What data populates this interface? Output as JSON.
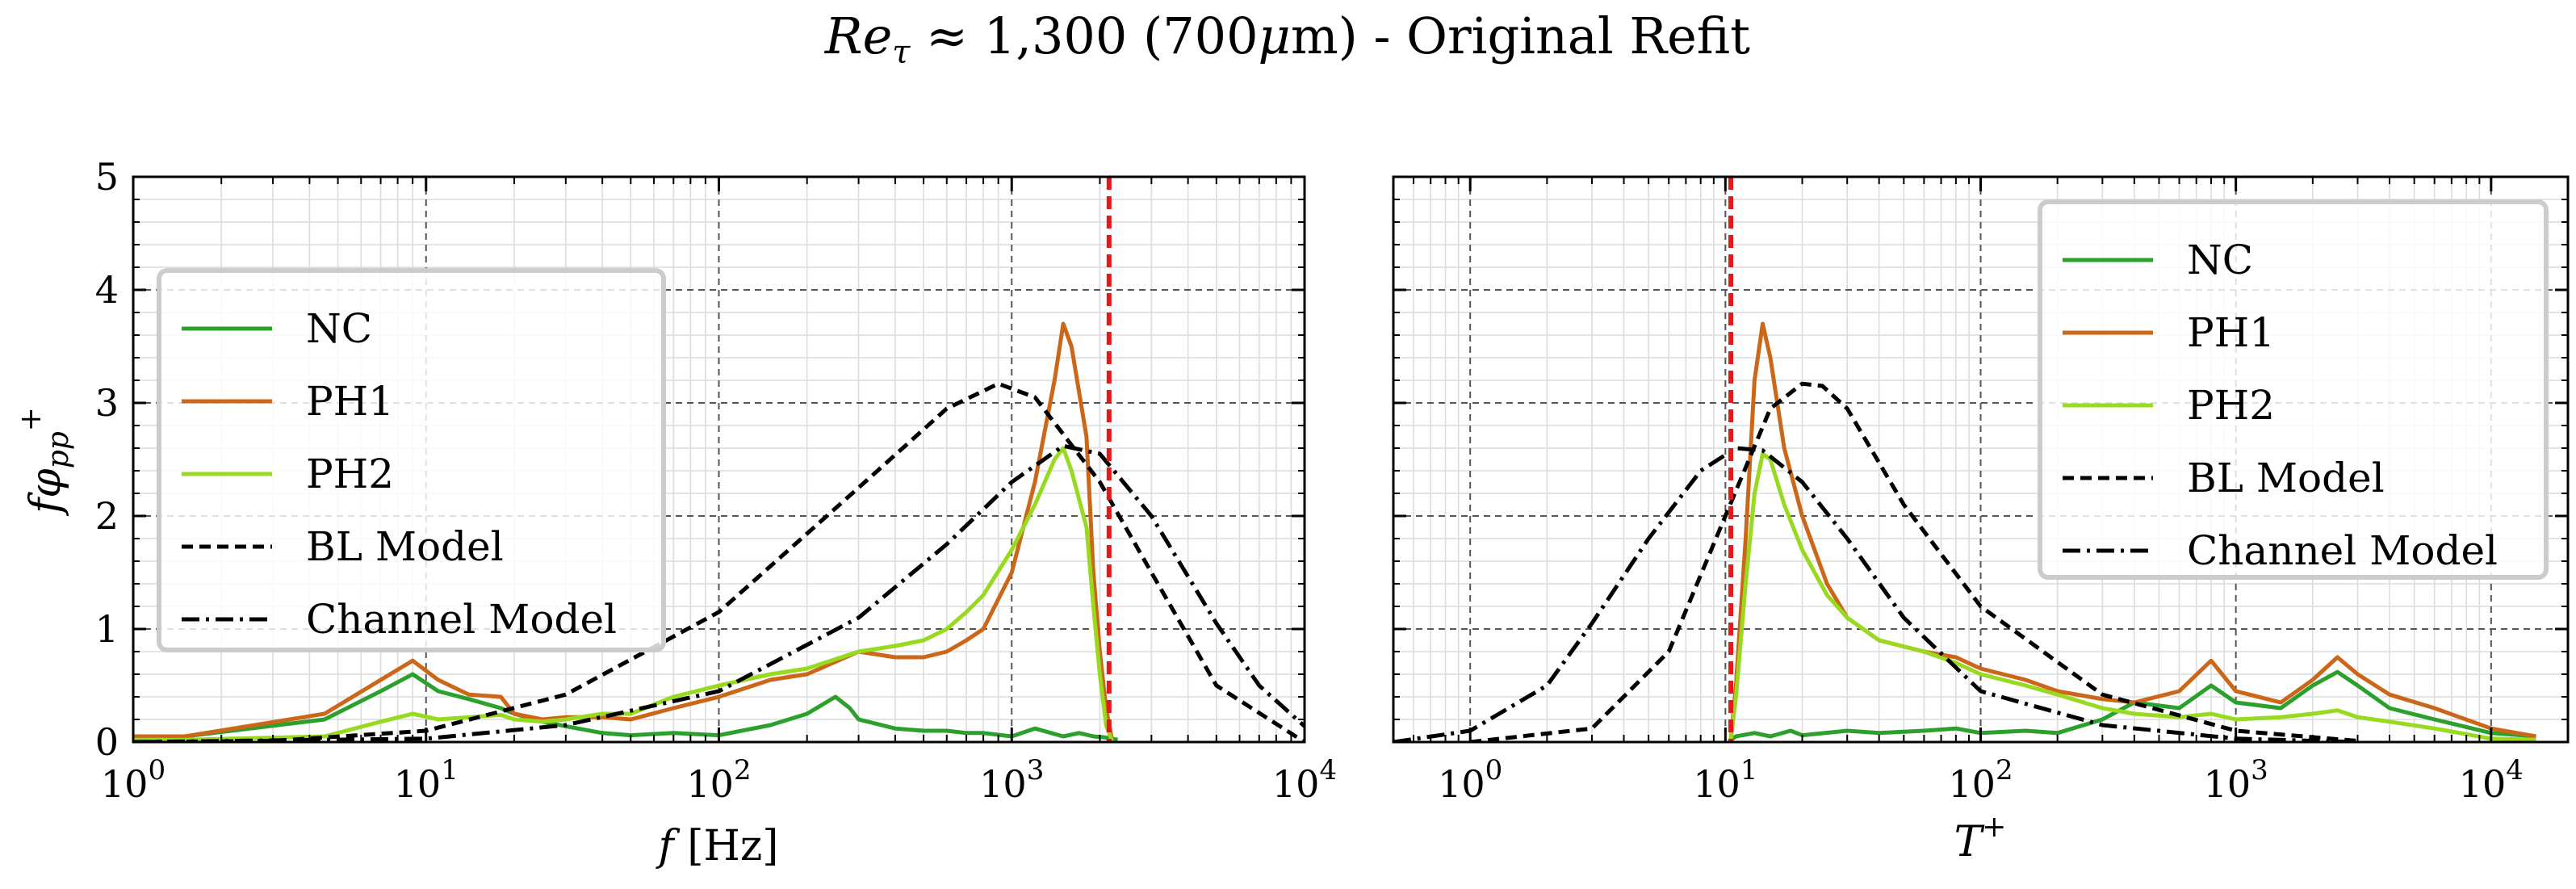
{
  "title": "Reτ ≈ 1,300 (700μm) - Original Refit",
  "title_parts": {
    "re": "Re",
    "tau": "τ",
    "approx": " ≈ 1,300 (700",
    "mu": "μ",
    "rest": "m) - Original Refit"
  },
  "colors": {
    "NC": "#2ca02c",
    "PH1": "#cc6619",
    "PH2": "#99d91f",
    "models": "#000000",
    "cutoff": "#e31a1c"
  },
  "chart_data": [
    {
      "type": "line",
      "xscale": "log",
      "xlabel": "f [Hz]",
      "ylabel": "fφpp+",
      "xlim": [
        1,
        10000
      ],
      "ylim": [
        0,
        5
      ],
      "xticks": [
        "10^0",
        "10^1",
        "10^2",
        "10^3",
        "10^4"
      ],
      "yticks": [
        "0",
        "1",
        "2",
        "3",
        "4",
        "5"
      ],
      "grid": true,
      "legend": {
        "placement": "left",
        "entries": [
          "NC",
          "PH1",
          "PH2",
          "BL Model",
          "Channel Model"
        ]
      },
      "cutoff_line_x": 2150,
      "series": [
        {
          "name": "NC",
          "style": "solid",
          "x": [
            1,
            1.5,
            4.5,
            7,
            9,
            11,
            14,
            18,
            20,
            25,
            30,
            40,
            50,
            70,
            100,
            150,
            200,
            250,
            280,
            300,
            400,
            500,
            600,
            700,
            800,
            1000,
            1200,
            1500,
            1700,
            1900,
            2100,
            2300
          ],
          "y": [
            0.05,
            0.05,
            0.2,
            0.45,
            0.6,
            0.45,
            0.38,
            0.3,
            0.25,
            0.18,
            0.14,
            0.08,
            0.06,
            0.08,
            0.06,
            0.15,
            0.25,
            0.4,
            0.3,
            0.2,
            0.12,
            0.1,
            0.1,
            0.08,
            0.08,
            0.05,
            0.12,
            0.05,
            0.08,
            0.05,
            0.04,
            0.02
          ]
        },
        {
          "name": "PH1",
          "style": "solid",
          "x": [
            1,
            1.5,
            4.5,
            7,
            9,
            11,
            14,
            18,
            20,
            25,
            30,
            40,
            50,
            70,
            100,
            150,
            200,
            300,
            400,
            500,
            600,
            700,
            800,
            1000,
            1200,
            1400,
            1500,
            1600,
            1800,
            1900,
            2000,
            2100,
            2200
          ],
          "y": [
            0.05,
            0.05,
            0.25,
            0.55,
            0.72,
            0.55,
            0.42,
            0.4,
            0.25,
            0.2,
            0.22,
            0.22,
            0.2,
            0.3,
            0.4,
            0.55,
            0.6,
            0.8,
            0.75,
            0.75,
            0.8,
            0.9,
            1.0,
            1.5,
            2.3,
            3.2,
            3.7,
            3.5,
            2.7,
            1.5,
            0.8,
            0.3,
            0.02
          ]
        },
        {
          "name": "PH2",
          "style": "solid",
          "x": [
            1,
            1.5,
            4.5,
            7,
            9,
            11,
            14,
            18,
            20,
            25,
            30,
            40,
            50,
            70,
            100,
            150,
            200,
            300,
            400,
            500,
            600,
            700,
            800,
            1000,
            1200,
            1400,
            1500,
            1600,
            1800,
            1900,
            2000,
            2100,
            2200
          ],
          "y": [
            0.02,
            0.02,
            0.05,
            0.18,
            0.25,
            0.2,
            0.22,
            0.24,
            0.2,
            0.18,
            0.2,
            0.25,
            0.25,
            0.4,
            0.5,
            0.6,
            0.65,
            0.8,
            0.85,
            0.9,
            1.0,
            1.15,
            1.3,
            1.7,
            2.1,
            2.5,
            2.6,
            2.4,
            1.9,
            1.2,
            0.6,
            0.15,
            0.01
          ]
        },
        {
          "name": "BL Model",
          "style": "dashed",
          "x": [
            1,
            3,
            10,
            30,
            100,
            300,
            600,
            900,
            1200,
            2000,
            3000,
            5000,
            10000
          ],
          "y": [
            0.0,
            0.01,
            0.1,
            0.42,
            1.15,
            2.25,
            2.95,
            3.17,
            3.05,
            2.3,
            1.5,
            0.5,
            0.0
          ]
        },
        {
          "name": "Channel Model",
          "style": "dashdot",
          "x": [
            1,
            10,
            30,
            100,
            300,
            600,
            1000,
            1500,
            2000,
            3000,
            5000,
            7000,
            10000
          ],
          "y": [
            0.0,
            0.03,
            0.15,
            0.45,
            1.1,
            1.75,
            2.3,
            2.62,
            2.55,
            2.0,
            1.05,
            0.5,
            0.14
          ]
        }
      ]
    },
    {
      "type": "line",
      "xscale": "log",
      "xlabel": "T+",
      "xlim": [
        0.5,
        20000
      ],
      "ylim": [
        0,
        5
      ],
      "xticks": [
        "10^0",
        "10^1",
        "10^2",
        "10^3",
        "10^4"
      ],
      "yticks": [
        "0",
        "1",
        "2",
        "3",
        "4",
        "5"
      ],
      "grid": true,
      "legend": {
        "placement": "top-right",
        "entries": [
          "NC",
          "PH1",
          "PH2",
          "BL Model",
          "Channel Model"
        ]
      },
      "cutoff_line_x": 10.5,
      "series": [
        {
          "name": "NC",
          "style": "solid",
          "x": [
            10.5,
            11,
            13,
            15,
            18,
            20,
            30,
            40,
            60,
            80,
            100,
            150,
            200,
            300,
            400,
            600,
            800,
            1000,
            1500,
            2000,
            2500,
            3000,
            4000,
            6000,
            10000,
            15000
          ],
          "y": [
            0.02,
            0.05,
            0.08,
            0.05,
            0.1,
            0.06,
            0.1,
            0.08,
            0.1,
            0.12,
            0.08,
            0.1,
            0.08,
            0.2,
            0.35,
            0.3,
            0.5,
            0.35,
            0.3,
            0.5,
            0.62,
            0.5,
            0.3,
            0.2,
            0.08,
            0.05
          ]
        },
        {
          "name": "PH1",
          "style": "solid",
          "x": [
            10.5,
            11,
            12,
            13,
            14,
            15,
            17,
            20,
            25,
            30,
            40,
            60,
            80,
            100,
            150,
            200,
            300,
            400,
            600,
            800,
            1000,
            1500,
            2000,
            2500,
            3000,
            4000,
            6000,
            10000,
            15000
          ],
          "y": [
            0.02,
            0.5,
            1.8,
            3.2,
            3.7,
            3.4,
            2.6,
            2.0,
            1.4,
            1.1,
            0.9,
            0.8,
            0.75,
            0.65,
            0.55,
            0.45,
            0.38,
            0.35,
            0.45,
            0.72,
            0.45,
            0.35,
            0.55,
            0.75,
            0.6,
            0.42,
            0.3,
            0.12,
            0.05
          ]
        },
        {
          "name": "PH2",
          "style": "solid",
          "x": [
            10.5,
            11,
            12,
            13,
            14,
            15,
            17,
            20,
            25,
            30,
            40,
            60,
            80,
            100,
            150,
            200,
            300,
            400,
            600,
            800,
            1000,
            1500,
            2000,
            2500,
            3000,
            4000,
            6000,
            10000,
            15000
          ],
          "y": [
            0.01,
            0.4,
            1.4,
            2.2,
            2.55,
            2.5,
            2.1,
            1.7,
            1.3,
            1.1,
            0.9,
            0.8,
            0.7,
            0.6,
            0.5,
            0.42,
            0.3,
            0.25,
            0.22,
            0.25,
            0.2,
            0.22,
            0.25,
            0.28,
            0.22,
            0.18,
            0.12,
            0.03,
            0.02
          ]
        },
        {
          "name": "BL Model",
          "style": "dashed",
          "x": [
            1,
            3,
            6,
            10,
            15,
            20,
            24,
            30,
            50,
            100,
            300,
            1000,
            3000
          ],
          "y": [
            0.0,
            0.12,
            0.8,
            2.0,
            2.95,
            3.17,
            3.15,
            2.95,
            2.1,
            1.2,
            0.42,
            0.1,
            0.01
          ]
        },
        {
          "name": "Channel Model",
          "style": "dashdot",
          "x": [
            0.5,
            1,
            2,
            3,
            5,
            8,
            11,
            14,
            20,
            30,
            50,
            100,
            300,
            1000,
            3000
          ],
          "y": [
            0.0,
            0.1,
            0.5,
            1.05,
            1.8,
            2.4,
            2.6,
            2.58,
            2.3,
            1.8,
            1.1,
            0.45,
            0.15,
            0.03,
            0.0
          ]
        }
      ]
    }
  ],
  "axes_text": {
    "left": {
      "xlabel_f": "f",
      "xlabel_unit": " [Hz]",
      "ylabel_f": "f",
      "ylabel_phi": "φ",
      "ylabel_sub": "pp",
      "ylabel_sup": "+"
    },
    "right": {
      "xlabel_T": "T",
      "xlabel_sup": "+"
    }
  }
}
